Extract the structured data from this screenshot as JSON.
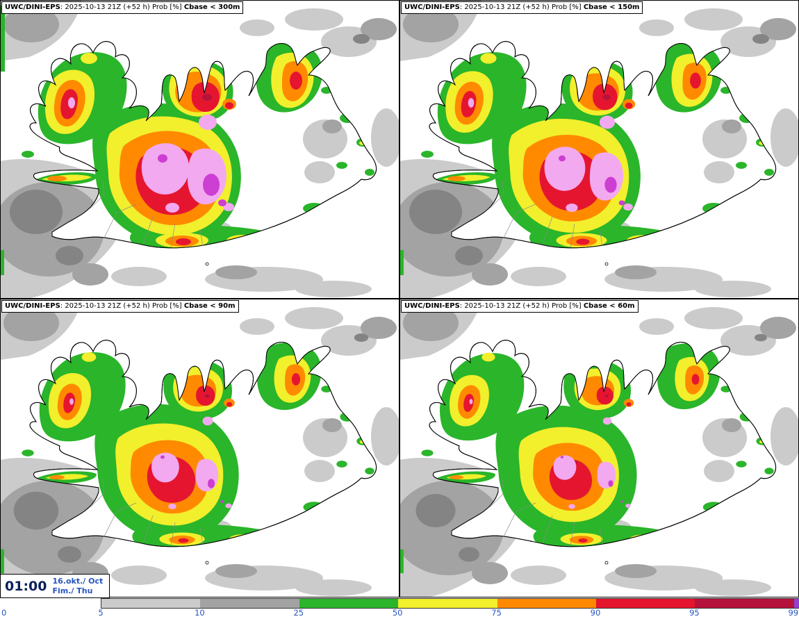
{
  "panels": [
    {
      "model": "UWC/DINI-EPS",
      "run": ": 2025-10-13 21Z (+52 h) Prob [%] ",
      "threshold": "Cbase < 300m"
    },
    {
      "model": "UWC/DINI-EPS",
      "run": ": 2025-10-13 21Z (+52 h) Prob [%] ",
      "threshold": "Cbase < 150m"
    },
    {
      "model": "UWC/DINI-EPS",
      "run": ": 2025-10-13 21Z (+52 h) Prob [%] ",
      "threshold": "Cbase < 90m"
    },
    {
      "model": "UWC/DINI-EPS",
      "run": ": 2025-10-13 21Z (+52 h) Prob [%] ",
      "threshold": "Cbase < 60m"
    }
  ],
  "clock": {
    "time": "01:00",
    "date": "16.okt./ Oct",
    "weekday": "Fim./ Thu"
  },
  "legend": {
    "zero": "0",
    "ticks": [
      "5",
      "10",
      "25",
      "50",
      "75",
      "90",
      "95",
      "99"
    ],
    "segment_keys": [
      "gray_light",
      "gray_mid",
      "green",
      "yellow",
      "orange",
      "red",
      "dark_red",
      "violet"
    ]
  },
  "palette": {
    "gray_light": "#cbcbcb",
    "gray_mid": "#a3a3a3",
    "gray_dark": "#848484",
    "green": "#2ab52a",
    "yellow": "#f2ef2c",
    "orange": "#ff8a00",
    "red": "#e51530",
    "dark_red": "#b5123c",
    "plum": "#f2a9ef",
    "magenta": "#cd3ed2",
    "violet": "#9440d2",
    "label_blue": "#2453c0",
    "time_navy": "#0b1f5a"
  }
}
